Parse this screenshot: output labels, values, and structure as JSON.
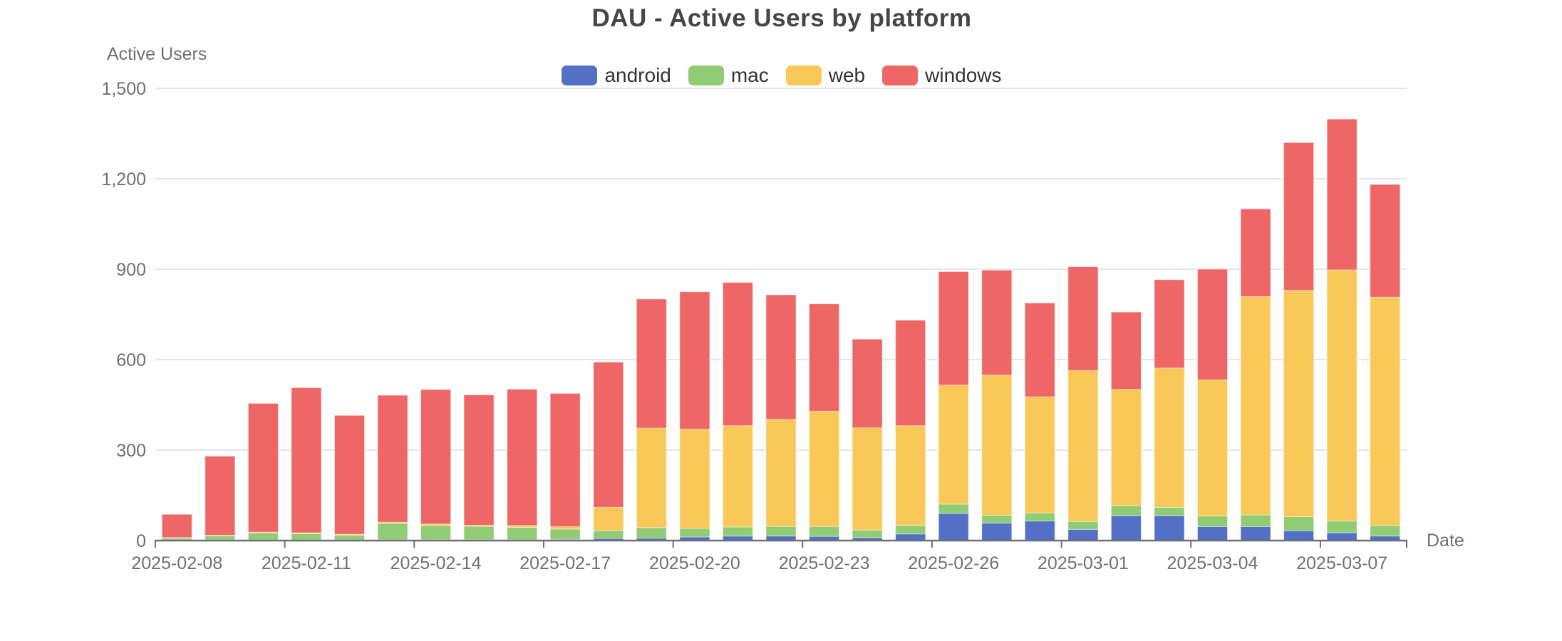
{
  "chart_data": {
    "type": "bar",
    "stacked": true,
    "title": "DAU - Active Users by platform",
    "y_axis_title": "Active Users",
    "x_axis_title": "Date",
    "ylim": [
      0,
      1500
    ],
    "y_ticks": [
      0,
      300,
      600,
      900,
      1200,
      1500
    ],
    "y_tick_labels": [
      "0",
      "300",
      "600",
      "900",
      "1,200",
      "1,500"
    ],
    "x_label_every": 3,
    "grid": true,
    "legend_position": "top",
    "categories": [
      "2025-02-08",
      "2025-02-09",
      "2025-02-10",
      "2025-02-11",
      "2025-02-12",
      "2025-02-13",
      "2025-02-14",
      "2025-02-15",
      "2025-02-16",
      "2025-02-17",
      "2025-02-18",
      "2025-02-19",
      "2025-02-20",
      "2025-02-21",
      "2025-02-22",
      "2025-02-23",
      "2025-02-24",
      "2025-02-25",
      "2025-02-26",
      "2025-02-27",
      "2025-02-28",
      "2025-03-01",
      "2025-03-02",
      "2025-03-03",
      "2025-03-04",
      "2025-03-05",
      "2025-03-06",
      "2025-03-07",
      "2025-03-08"
    ],
    "series": [
      {
        "name": "android",
        "color": "#5470C6",
        "values": [
          1,
          2,
          2,
          2,
          2,
          3,
          3,
          3,
          3,
          4,
          7,
          8,
          12,
          15,
          15,
          14,
          10,
          22,
          90,
          58,
          65,
          37,
          83,
          83,
          46,
          46,
          33,
          26,
          15
        ]
      },
      {
        "name": "mac",
        "color": "#91CC75",
        "values": [
          7,
          14,
          23,
          21,
          16,
          54,
          47,
          44,
          41,
          34,
          26,
          35,
          29,
          30,
          32,
          33,
          25,
          28,
          31,
          26,
          27,
          26,
          33,
          27,
          36,
          39,
          46,
          39,
          35
        ]
      },
      {
        "name": "web",
        "color": "#FAC858",
        "values": [
          2,
          2,
          3,
          3,
          3,
          4,
          5,
          4,
          6,
          8,
          77,
          330,
          329,
          336,
          355,
          382,
          339,
          331,
          395,
          465,
          385,
          501,
          386,
          462,
          451,
          724,
          751,
          833,
          757
        ]
      },
      {
        "name": "windows",
        "color": "#EE6666",
        "values": [
          77,
          262,
          427,
          481,
          394,
          421,
          446,
          432,
          452,
          442,
          482,
          428,
          455,
          475,
          413,
          356,
          294,
          350,
          376,
          348,
          311,
          344,
          256,
          293,
          367,
          291,
          490,
          500,
          374
        ]
      }
    ],
    "style_colors": {
      "title": "#464646",
      "legend_text": "#333333",
      "axis_line": "#6E7079",
      "tick_text": "#6E7079",
      "gridline": "#E0E6F1",
      "background": "#FFFFFF"
    }
  }
}
